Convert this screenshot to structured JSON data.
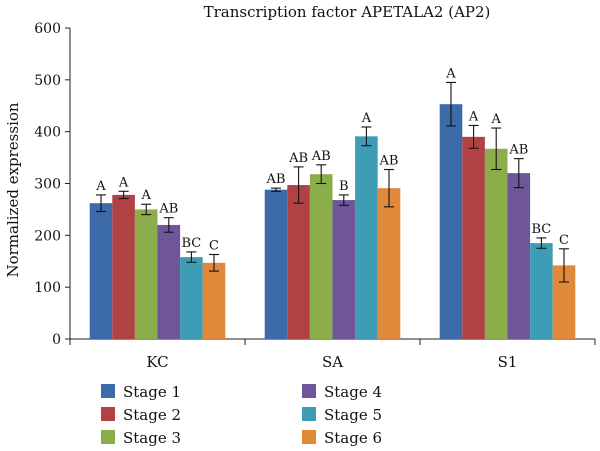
{
  "chart_data": {
    "type": "bar",
    "title": "Transcription factor APETALA2 (AP2)",
    "ylabel": "Normalized expression",
    "xlabel": "",
    "ylim": [
      0,
      600
    ],
    "yticks": [
      0,
      100,
      200,
      300,
      400,
      500,
      600
    ],
    "categories": [
      "KC",
      "SA",
      "S1"
    ],
    "legend_position": "bottom",
    "grid": false,
    "series": [
      {
        "name": "Stage 1",
        "color": "#3d6aa8",
        "values": [
          262,
          288,
          453
        ],
        "errors": [
          16,
          3,
          42
        ],
        "labels": [
          "A",
          "AB",
          "A"
        ]
      },
      {
        "name": "Stage 2",
        "color": "#b04243",
        "values": [
          278,
          297,
          390
        ],
        "errors": [
          7,
          35,
          22
        ],
        "labels": [
          "A",
          "AB",
          "A"
        ]
      },
      {
        "name": "Stage 3",
        "color": "#8bae4a",
        "values": [
          250,
          318,
          367
        ],
        "errors": [
          10,
          18,
          40
        ],
        "labels": [
          "A",
          "AB",
          "A"
        ]
      },
      {
        "name": "Stage 4",
        "color": "#6f559a",
        "values": [
          220,
          268,
          320
        ],
        "errors": [
          14,
          10,
          28
        ],
        "labels": [
          "AB",
          "B",
          "AB"
        ]
      },
      {
        "name": "Stage 5",
        "color": "#3e9db4",
        "values": [
          158,
          391,
          185
        ],
        "errors": [
          10,
          18,
          10
        ],
        "labels": [
          "BC",
          "A",
          "BC"
        ]
      },
      {
        "name": "Stage 6",
        "color": "#e0893a",
        "values": [
          147,
          291,
          142
        ],
        "errors": [
          16,
          36,
          32
        ],
        "labels": [
          "C",
          "AB",
          "C"
        ]
      }
    ]
  }
}
